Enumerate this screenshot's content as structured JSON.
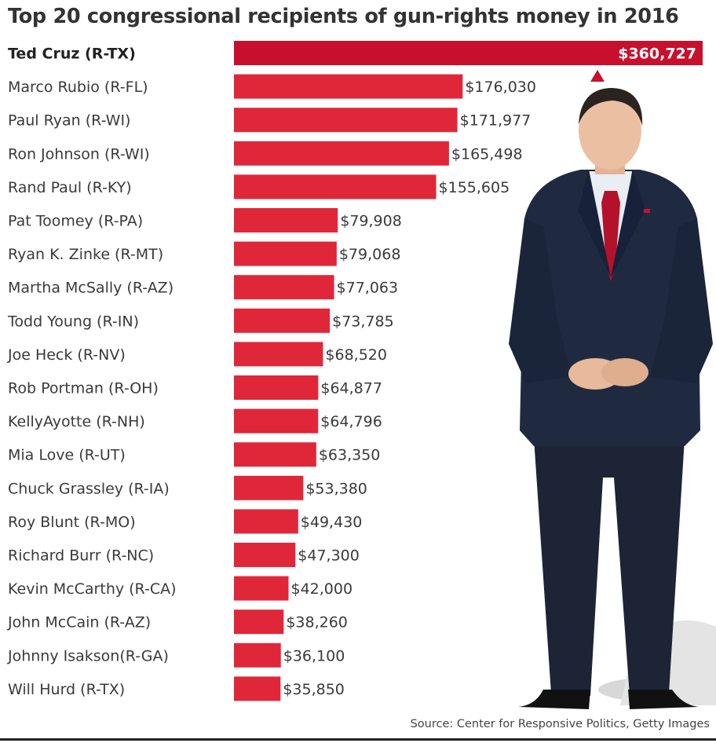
{
  "chart_data": {
    "type": "bar",
    "orientation": "horizontal",
    "title": "Top 20 congressional recipients of gun-rights money in 2016",
    "source": "Source: Center for Responsive Politics, Getty Images",
    "categories": [
      "Ted Cruz (R-TX)",
      "Marco Rubio (R-FL)",
      "Paul Ryan (R-WI)",
      "Ron Johnson (R-WI)",
      "Rand Paul (R-KY)",
      "Pat Toomey (R-PA)",
      "Ryan K. Zinke (R-MT)",
      "Martha McSally (R-AZ)",
      "Todd Young (R-IN)",
      "Joe Heck (R-NV)",
      "Rob Portman (R-OH)",
      "KellyAyotte (R-NH)",
      "Mia Love (R-UT)",
      "Chuck Grassley (R-IA)",
      "Roy Blunt (R-MO)",
      "Richard Burr (R-NC)",
      "Kevin McCarthy (R-CA)",
      "John McCain (R-AZ)",
      "Johnny  Isakson(R-GA)",
      "Will Hurd (R-TX)"
    ],
    "values": [
      360727,
      176030,
      171977,
      165498,
      155605,
      79908,
      79068,
      77063,
      73785,
      68520,
      64877,
      64796,
      63350,
      53380,
      49430,
      47300,
      42000,
      38260,
      36100,
      35850
    ],
    "value_labels": [
      "$360,727",
      "$176,030",
      "$171,977",
      "$165,498",
      "$155,605",
      "$79,908",
      "$79,068",
      "$77,063",
      "$73,785",
      "$68,520",
      "$64,877",
      "$64,796",
      "$63,350",
      "$53,380",
      "$49,430",
      "$47,300",
      "$42,000",
      "$38,260",
      "$36,100",
      "$35,850"
    ],
    "xlim": [
      0,
      360727
    ],
    "grid": false,
    "legend": false,
    "colors": {
      "top_bar": "#c8102e",
      "bar": "#e0273a",
      "text": "#3a3a3a"
    }
  },
  "figure": {
    "icon": "photo-of-ted-cruz"
  }
}
